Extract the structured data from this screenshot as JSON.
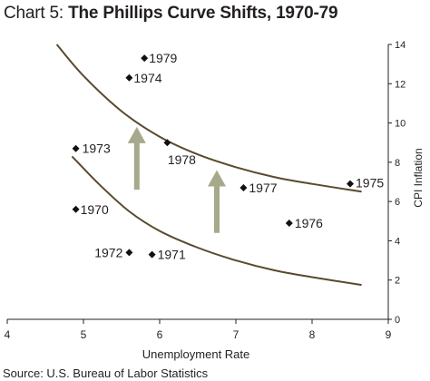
{
  "header": {
    "chart_number": "Chart 5",
    "separator": ": ",
    "title": "The Phillips Curve Shifts, 1970-79"
  },
  "source": "Source: U.S. Bureau of Labor Statistics",
  "colors": {
    "curve": "#594a2d",
    "arrow": "#a7a98c",
    "axis": "#231f20",
    "point": "#111111"
  },
  "chart_data": {
    "type": "scatter",
    "title": "The Phillips Curve Shifts, 1970-79",
    "xlabel": "Unemployment Rate",
    "ylabel": "CPI Inflation",
    "xlim": [
      4,
      9
    ],
    "ylim": [
      0,
      14
    ],
    "x_ticks": [
      4,
      5,
      6,
      7,
      8,
      9
    ],
    "y_ticks": [
      0,
      2,
      4,
      6,
      8,
      10,
      12,
      14
    ],
    "y_axis_side": "right",
    "grid": false,
    "legend": "none",
    "points": [
      {
        "label": "1970",
        "x": 4.9,
        "y": 5.6
      },
      {
        "label": "1971",
        "x": 5.9,
        "y": 3.3
      },
      {
        "label": "1972",
        "x": 5.6,
        "y": 3.4
      },
      {
        "label": "1973",
        "x": 4.9,
        "y": 8.7
      },
      {
        "label": "1974",
        "x": 5.6,
        "y": 12.3
      },
      {
        "label": "1975",
        "x": 8.5,
        "y": 6.9
      },
      {
        "label": "1976",
        "x": 7.7,
        "y": 4.9
      },
      {
        "label": "1977",
        "x": 7.1,
        "y": 6.7
      },
      {
        "label": "1978",
        "x": 6.1,
        "y": 9.0
      },
      {
        "label": "1979",
        "x": 5.8,
        "y": 13.3
      }
    ],
    "curves": [
      {
        "id": "upper",
        "x": [
          4.65,
          5.0,
          5.5,
          6.0,
          6.5,
          7.0,
          7.5,
          8.0,
          8.65
        ],
        "y": [
          14.0,
          12.4,
          10.6,
          9.3,
          8.4,
          7.75,
          7.25,
          6.9,
          6.5
        ]
      },
      {
        "id": "lower",
        "x": [
          4.85,
          5.2,
          5.6,
          6.0,
          6.5,
          7.0,
          7.5,
          8.0,
          8.65
        ],
        "y": [
          8.3,
          6.9,
          5.5,
          4.5,
          3.65,
          3.0,
          2.5,
          2.15,
          1.75
        ]
      }
    ],
    "arrows": [
      {
        "x": 5.7,
        "y_from": 6.6,
        "y_to": 9.8
      },
      {
        "x": 6.75,
        "y_from": 4.4,
        "y_to": 7.6
      }
    ]
  }
}
